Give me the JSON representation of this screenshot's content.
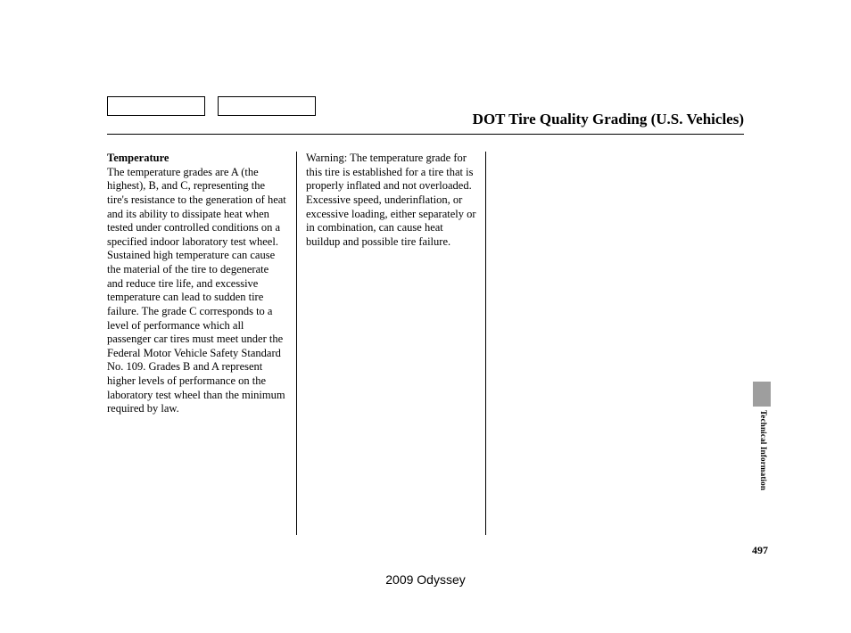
{
  "header": {
    "title": "DOT Tire Quality Grading (U.S. Vehicles)"
  },
  "column1": {
    "heading": "Temperature",
    "body": "The temperature grades are A (the highest), B, and C, representing the tire's resistance to the generation of heat and its ability to dissipate heat when tested under controlled conditions on a specified indoor laboratory test wheel. Sustained high temperature can cause the material of the tire to degenerate and reduce tire life, and excessive temperature can lead to sudden tire failure. The grade C corresponds to a level of performance which all passenger car tires must meet under the Federal Motor Vehicle Safety Standard No. 109. Grades B and A represent higher levels of performance on the laboratory test wheel than the minimum required by law."
  },
  "column2": {
    "body": "Warning: The temperature grade for this tire is established for a tire that is properly inflated and not overloaded. Excessive speed, underinflation, or excessive loading, either separately or in combination, can cause heat buildup and possible tire failure."
  },
  "sideTab": {
    "label": "Technical Information"
  },
  "pageNumber": "497",
  "footer": {
    "model": "2009  Odyssey"
  }
}
